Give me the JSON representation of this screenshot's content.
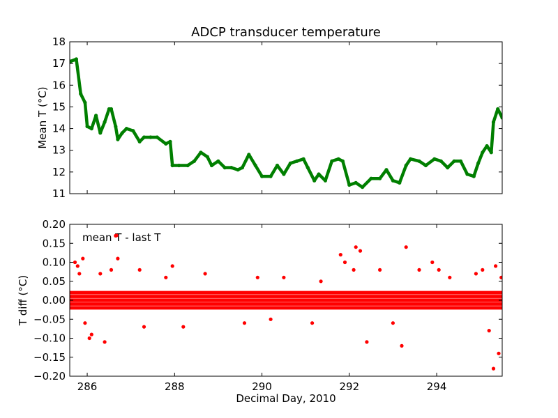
{
  "chart_data": [
    {
      "type": "scatter",
      "title": "ADCP transducer temperature",
      "xlabel": "",
      "ylabel": "Mean T (°C)",
      "xlim": [
        285.6,
        295.5
      ],
      "ylim": [
        11,
        18
      ],
      "yticks": [
        "11",
        "12",
        "13",
        "14",
        "15",
        "16",
        "17",
        "18"
      ],
      "grid": false,
      "legend": "none",
      "marker_color": "#007f00",
      "series": [
        {
          "x": [
            285.62,
            285.75,
            285.85,
            285.95,
            286.0,
            286.1,
            286.2,
            286.3,
            286.4,
            286.5,
            286.55,
            286.65,
            286.7,
            286.8,
            286.9,
            287.05,
            287.2,
            287.3,
            287.45,
            287.6,
            287.8,
            287.9,
            287.95,
            288.1,
            288.3,
            288.45,
            288.6,
            288.75,
            288.85,
            289.0,
            289.15,
            289.3,
            289.45,
            289.55,
            289.7,
            289.85,
            290.0,
            290.2,
            290.35,
            290.5,
            290.65,
            290.8,
            290.95,
            291.05,
            291.2,
            291.3,
            291.45,
            291.6,
            291.75,
            291.85,
            292.0,
            292.15,
            292.3,
            292.5,
            292.7,
            292.85,
            293.0,
            293.15,
            293.3,
            293.4,
            293.6,
            293.75,
            293.95,
            294.1,
            294.25,
            294.4,
            294.55,
            294.7,
            294.85,
            294.95,
            295.05,
            295.15,
            295.25,
            295.3,
            295.4,
            295.5
          ],
          "y": [
            17.1,
            17.2,
            15.6,
            15.2,
            14.1,
            14.0,
            14.6,
            13.8,
            14.3,
            14.9,
            14.9,
            14.1,
            13.5,
            13.8,
            14.0,
            13.9,
            13.4,
            13.6,
            13.6,
            13.6,
            13.3,
            13.4,
            12.3,
            12.3,
            12.3,
            12.5,
            12.9,
            12.7,
            12.3,
            12.5,
            12.2,
            12.2,
            12.1,
            12.2,
            12.8,
            12.3,
            11.8,
            11.8,
            12.3,
            11.9,
            12.4,
            12.5,
            12.6,
            12.2,
            11.6,
            11.9,
            11.6,
            12.5,
            12.6,
            12.5,
            11.4,
            11.5,
            11.3,
            11.7,
            11.7,
            12.1,
            11.6,
            11.5,
            12.3,
            12.6,
            12.5,
            12.3,
            12.6,
            12.5,
            12.2,
            12.5,
            12.5,
            11.9,
            11.8,
            12.4,
            12.9,
            13.2,
            12.9,
            14.3,
            14.9,
            14.5
          ]
        }
      ]
    },
    {
      "type": "scatter",
      "title": "",
      "xlabel": "Decimal Day, 2010",
      "ylabel": "T diff (°C)",
      "xlim": [
        285.6,
        295.5
      ],
      "ylim": [
        -0.2,
        0.2
      ],
      "xticks": [
        "286",
        "288",
        "290",
        "292",
        "294"
      ],
      "yticks": [
        "−0.20",
        "−0.15",
        "−0.10",
        "−0.05",
        "0.00",
        "0.05",
        "0.10",
        "0.15",
        "0.20"
      ],
      "grid": false,
      "legend": "upper-left",
      "marker_color": "#ff0000",
      "series": [
        {
          "name": "mean T - last T",
          "band": [
            -0.02,
            0.02
          ],
          "x": [
            285.72,
            285.78,
            285.82,
            285.9,
            285.95,
            286.05,
            286.1,
            286.3,
            286.4,
            286.55,
            286.65,
            286.7,
            287.2,
            287.3,
            287.8,
            287.95,
            288.2,
            288.7,
            289.6,
            289.9,
            290.2,
            290.5,
            291.15,
            291.35,
            291.8,
            291.9,
            292.1,
            292.15,
            292.25,
            292.4,
            292.7,
            293.0,
            293.2,
            293.3,
            293.6,
            293.9,
            294.05,
            294.3,
            294.9,
            295.05,
            295.2,
            295.3,
            295.35,
            295.42,
            295.48
          ],
          "y": [
            0.1,
            0.09,
            0.07,
            0.11,
            -0.06,
            -0.1,
            -0.09,
            0.07,
            -0.11,
            0.08,
            0.17,
            0.11,
            0.08,
            -0.07,
            0.06,
            0.09,
            -0.07,
            0.07,
            -0.06,
            0.06,
            -0.05,
            0.06,
            -0.06,
            0.05,
            0.12,
            0.1,
            0.08,
            0.14,
            0.13,
            -0.11,
            0.08,
            -0.06,
            -0.12,
            0.14,
            0.08,
            0.1,
            0.08,
            0.06,
            0.07,
            0.08,
            -0.08,
            -0.18,
            0.09,
            -0.14,
            0.06
          ]
        }
      ]
    }
  ]
}
